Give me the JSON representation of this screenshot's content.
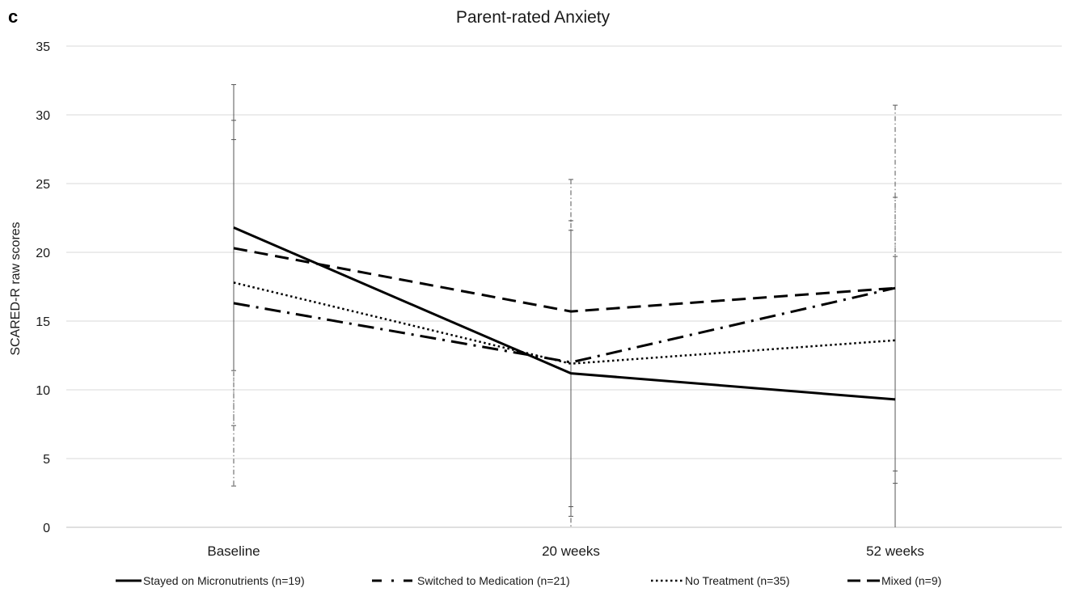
{
  "panel_letter": "c",
  "chart_data": {
    "type": "line",
    "title": "Parent-rated Anxiety",
    "xlabel": "",
    "ylabel": "SCARED-R raw scores",
    "categories": [
      "Baseline",
      "20 weeks",
      "52 weeks"
    ],
    "ylim": [
      0,
      35
    ],
    "yticks": [
      0,
      5,
      10,
      15,
      20,
      25,
      30,
      35
    ],
    "grid": "horizontal",
    "legend_position": "bottom",
    "colors": {
      "line": "#000000",
      "grid": "#d9d9d9",
      "error_bar": "#555555"
    },
    "series": [
      {
        "name": "Stayed on Micronutrients (n=19)",
        "style": "solid",
        "values": [
          21.8,
          11.2,
          9.3
        ],
        "error_high": [
          32.2,
          21.6,
          19.7
        ],
        "error_low": [
          11.4,
          0.8,
          -1.1
        ]
      },
      {
        "name": "Switched to Medication (n=21)",
        "style": "dashdot",
        "values": [
          16.3,
          12.0,
          17.4
        ],
        "error_high": [
          29.6,
          25.3,
          30.7
        ],
        "error_low": [
          3.0,
          -1.3,
          4.1
        ]
      },
      {
        "name": "No Treatment (n=35)",
        "style": "dotted",
        "values": [
          17.8,
          11.9,
          13.6
        ],
        "error_high": [
          28.2,
          22.3,
          24.0
        ],
        "error_low": [
          7.4,
          1.5,
          3.2
        ]
      },
      {
        "name": "Mixed (n=9)",
        "style": "dashed",
        "values": [
          20.3,
          15.7,
          17.4
        ],
        "error_high": [
          null,
          null,
          null
        ],
        "error_low": [
          null,
          null,
          null
        ]
      }
    ]
  }
}
